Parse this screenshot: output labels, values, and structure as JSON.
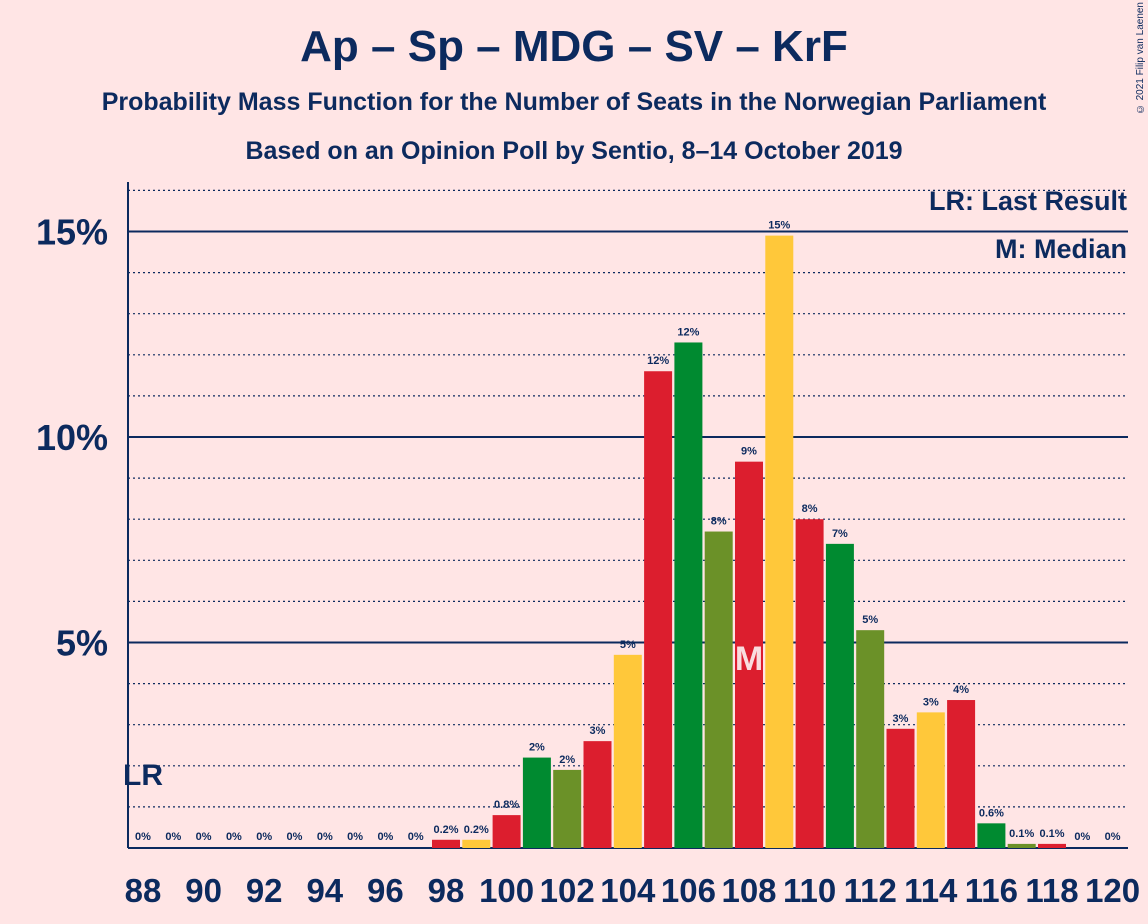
{
  "title": "Ap – Sp – MDG – SV – KrF",
  "subtitle": "Probability Mass Function for the Number of Seats in the Norwegian Parliament",
  "source": "Based on an Opinion Poll by Sentio, 8–14 October 2019",
  "copyright": "© 2021 Filip van Laenen",
  "legend": {
    "last_result": "LR: Last Result",
    "median": "M: Median"
  },
  "markers": {
    "last_result_label": "LR",
    "last_result_seat": 88,
    "median_label": "M",
    "median_seat": 108
  },
  "colors": {
    "background": "#ffe5e5",
    "text": "#0c2a5e",
    "red": "#dc1e2e",
    "green": "#008a30",
    "olive": "#6b9128",
    "yellow": "#ffc83a"
  },
  "chart_data": {
    "type": "bar",
    "ylim": [
      0,
      16
    ],
    "y_ticks": [
      {
        "value": 5,
        "label": "5%"
      },
      {
        "value": 10,
        "label": "10%"
      },
      {
        "value": 15,
        "label": "15%"
      }
    ],
    "x_tick_labels": [
      "88",
      "90",
      "92",
      "94",
      "96",
      "98",
      "100",
      "102",
      "104",
      "106",
      "108",
      "110",
      "112",
      "114",
      "116",
      "118",
      "120"
    ],
    "series": [
      {
        "x": [
          88,
          89,
          90,
          91,
          92,
          93,
          94,
          95,
          96,
          97,
          98,
          99,
          100,
          101,
          102,
          103,
          104,
          105,
          106,
          107,
          108,
          109,
          110,
          111,
          112,
          113,
          114,
          115,
          116,
          117,
          118,
          119,
          120
        ],
        "values": [
          0,
          0,
          0,
          0,
          0,
          0,
          0,
          0,
          0,
          0,
          0.2,
          0.2,
          0.8,
          2.2,
          1.9,
          2.6,
          4.7,
          11.6,
          12.3,
          7.7,
          9.4,
          14.9,
          8.0,
          7.4,
          5.3,
          2.9,
          3.3,
          3.6,
          0.6,
          0.1,
          0.1,
          0,
          0
        ],
        "labels": [
          "0%",
          "0%",
          "0%",
          "0%",
          "0%",
          "0%",
          "0%",
          "0%",
          "0%",
          "0%",
          "0.2%",
          "0.2%",
          "0.8%",
          "2%",
          "2%",
          "3%",
          "5%",
          "12%",
          "12%",
          "8%",
          "9%",
          "15%",
          "8%",
          "7%",
          "5%",
          "3%",
          "3%",
          "4%",
          "0.6%",
          "0.1%",
          "0.1%",
          "0%",
          "0%"
        ],
        "colors": [
          "red",
          "yellow",
          "red",
          "green",
          "olive",
          "red",
          "yellow",
          "red",
          "green",
          "olive",
          "red",
          "yellow",
          "red",
          "green",
          "olive",
          "red",
          "yellow",
          "red",
          "green",
          "olive",
          "red",
          "yellow",
          "red",
          "green",
          "olive",
          "red",
          "yellow",
          "red",
          "green",
          "olive",
          "red",
          "yellow",
          "red"
        ]
      }
    ]
  }
}
